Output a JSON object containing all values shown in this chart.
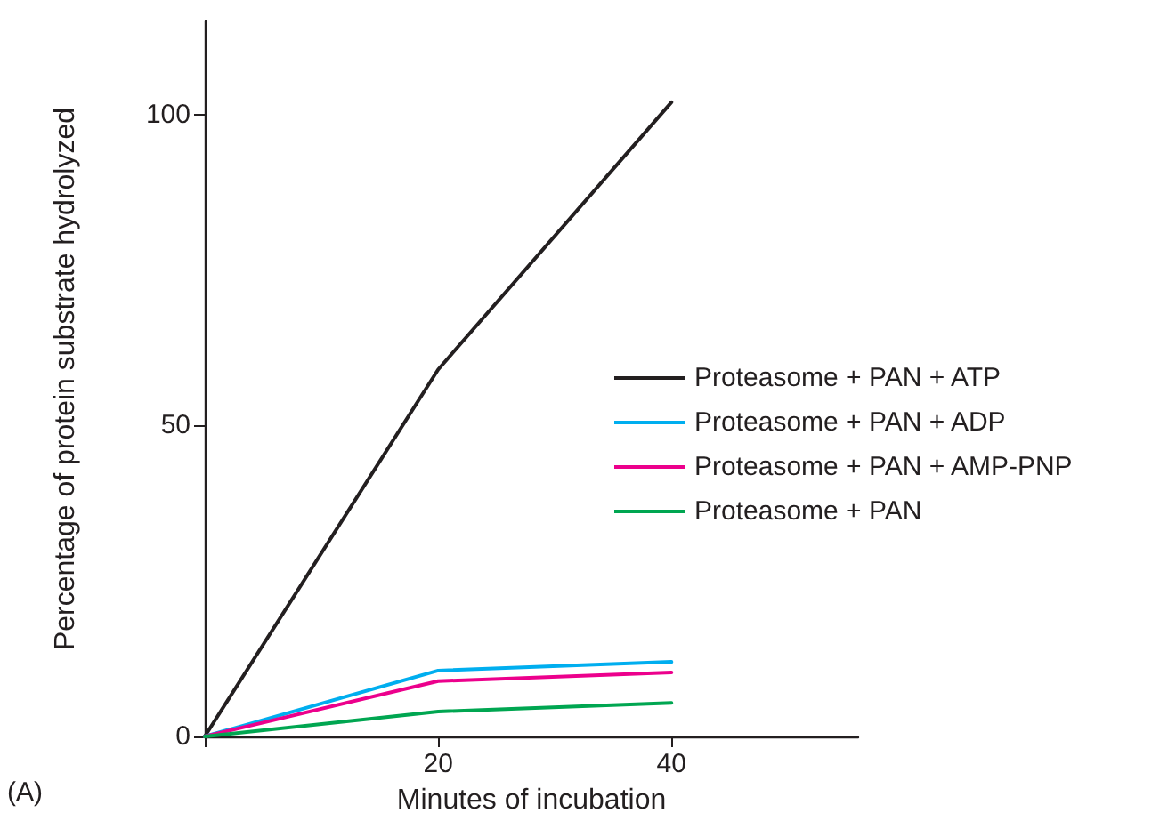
{
  "chart_data": {
    "type": "line",
    "xlabel": "Minutes of incubation",
    "ylabel": "Percentage of protein substrate hydrolyzed",
    "annotations": [
      "(A)"
    ],
    "x": [
      0,
      20,
      40
    ],
    "series": [
      {
        "name": "Proteasome + PAN + ATP",
        "color": "#231f20",
        "values": [
          0,
          59,
          102
        ]
      },
      {
        "name": "Proteasome + PAN + ADP",
        "color": "#00aeef",
        "values": [
          0,
          10.6,
          12
        ]
      },
      {
        "name": "Proteasome + PAN + AMP-PNP",
        "color": "#ec008c",
        "values": [
          0,
          8.9,
          10.3
        ]
      },
      {
        "name": "Proteasome + PAN",
        "color": "#00a651",
        "values": [
          0,
          4,
          5.4
        ]
      }
    ],
    "xlim": [
      0,
      56
    ],
    "xticks": [
      {
        "value": 0,
        "label": null
      },
      20,
      40
    ],
    "ylim": [
      0,
      115
    ],
    "yticks": [
      0,
      50,
      100
    ],
    "grid": false,
    "legend": "right"
  }
}
